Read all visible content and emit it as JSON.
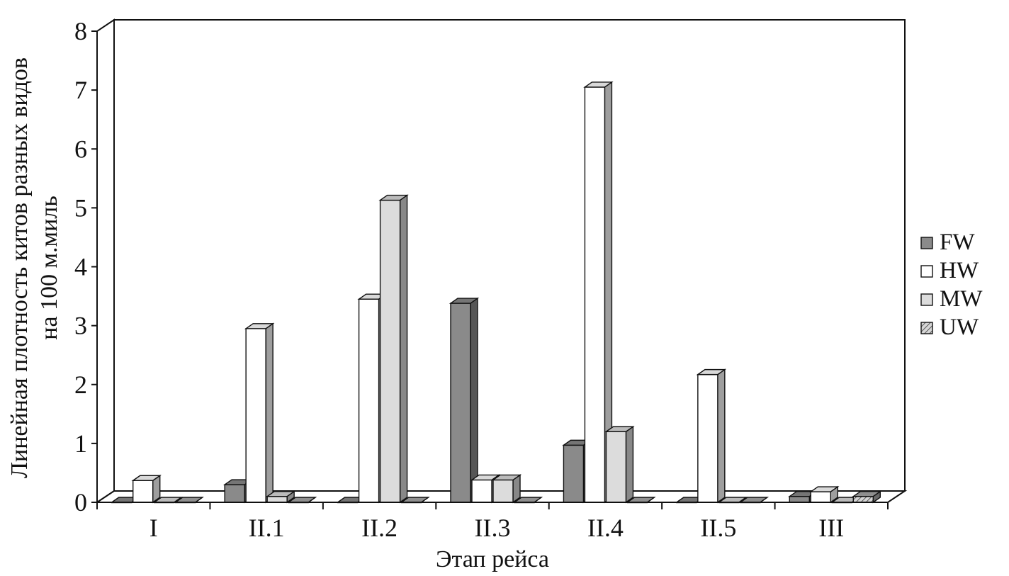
{
  "chart_data": {
    "type": "bar",
    "style": "3d-clustered-columns",
    "title": "",
    "xlabel": "Этап рейса",
    "ylabel_line1": "Линейная плотность китов разных видов",
    "ylabel_line2": "на 100 м.миль",
    "ylim": [
      0,
      8
    ],
    "yticks": [
      "0",
      "1",
      "2",
      "3",
      "4",
      "5",
      "6",
      "7",
      "8"
    ],
    "grid": false,
    "legend_position": "right",
    "categories": [
      "I",
      "II.1",
      "II.2",
      "II.3",
      "II.4",
      "II.5",
      "III"
    ],
    "series": [
      {
        "name": "FW",
        "color": "#8a8a8a",
        "pattern": "solid",
        "values": [
          0,
          0.3,
          0,
          3.38,
          0.97,
          0,
          0.1
        ]
      },
      {
        "name": "HW",
        "color": "#ffffff",
        "pattern": "solid",
        "values": [
          0.37,
          2.95,
          3.45,
          0.38,
          7.05,
          2.17,
          0.18
        ]
      },
      {
        "name": "MW",
        "color": "#dcdcdc",
        "pattern": "solid",
        "values": [
          0,
          0.1,
          5.13,
          0.38,
          1.2,
          0,
          0
        ]
      },
      {
        "name": "UW",
        "color": "#a8a8a8",
        "pattern": "hatched",
        "values": [
          0,
          0,
          0,
          0,
          0,
          0,
          0.1
        ]
      }
    ]
  }
}
